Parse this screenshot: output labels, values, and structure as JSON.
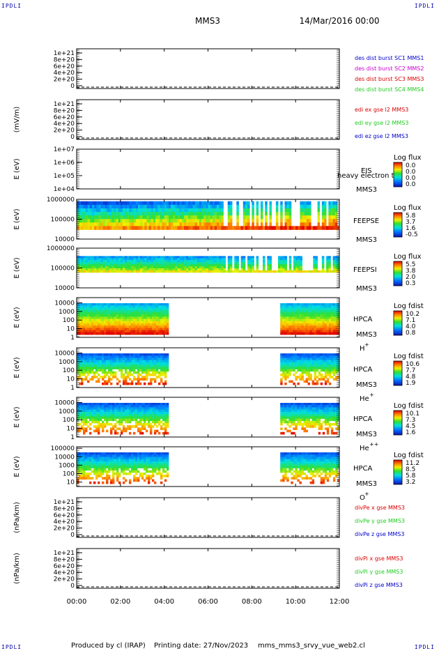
{
  "corners": {
    "top_left": "IPDLI",
    "top_right": "IPDLI",
    "bottom_left": "IPDLI",
    "bottom_right": "IPDLI"
  },
  "header": {
    "spacecraft": "MMS3",
    "date": "14/Mar/2016 00:00"
  },
  "footer": {
    "produced_by": "Produced by cl (IRAP)",
    "printing_date": "Printing date: 27/Nov/2023",
    "script_name": "mms_mms3_srvy_vue_web2.cl"
  },
  "colors": {
    "ink": "#000000",
    "red": "#dd0000",
    "green": "#22cc22",
    "blue": "#0000cc",
    "magenta": "#cc00cc"
  },
  "chart_data": [
    {
      "id": "des-dist",
      "type": "line",
      "ylabel": "",
      "yticks": [
        "1e+21",
        "8e+20",
        "6e+20",
        "4e+20",
        "2e+20",
        "0"
      ],
      "ylim": [
        0,
        1e+21
      ],
      "xlim": [
        0,
        12
      ],
      "zero_line": "dashed",
      "series": [
        {
          "name": "des dist burst SC1 MMS1",
          "color": "#0000cc",
          "values": []
        },
        {
          "name": "des dist burst SC2 MMS2",
          "color": "#cc00cc",
          "values": []
        },
        {
          "name": "des dist burst SC3 MMS3",
          "color": "#dd0000",
          "values": []
        },
        {
          "name": "des dist burst SC4 MMS4",
          "color": "#22cc22",
          "values": []
        }
      ]
    },
    {
      "id": "edi",
      "type": "line",
      "ylabel": "(mV/m)",
      "yticks": [
        "1e+21",
        "8e+20",
        "6e+20",
        "4e+20",
        "2e+20",
        "0"
      ],
      "ylim": [
        0,
        1e+21
      ],
      "xlim": [
        0,
        12
      ],
      "zero_line": "dashed",
      "series": [
        {
          "name": "edi ex gse l2 MMS3",
          "color": "#dd0000",
          "values": []
        },
        {
          "name": "edi ey gse l2 MMS3",
          "color": "#22cc22",
          "values": []
        },
        {
          "name": "edi ez gse l2 MMS3",
          "color": "#0000cc",
          "values": []
        }
      ]
    },
    {
      "id": "eis",
      "type": "heatmap",
      "ylabel": "E (eV)",
      "scale": "log",
      "yticks": [
        "1e+07",
        "1e+06",
        "1e+05",
        "1e+04"
      ],
      "ylim": [
        10000,
        10000000
      ],
      "xlim": [
        0,
        12
      ],
      "instrument": "EIS",
      "instrument_extra": "heavy electron to",
      "spacecraft": "MMS3",
      "colorbar": {
        "title": "Log flux",
        "ticks": [
          "0.0",
          "0.0",
          "0.0",
          "0.0"
        ]
      },
      "data_intervals": []
    },
    {
      "id": "feeps-e",
      "type": "heatmap",
      "ylabel": "E (eV)",
      "scale": "log",
      "yticks": [
        "1000000",
        "100000",
        "10000"
      ],
      "ylim": [
        10000,
        1000000
      ],
      "xlim": [
        0,
        12
      ],
      "instrument": "FEEPSE",
      "spacecraft": "MMS3",
      "colorbar": {
        "title": "Log flux",
        "ticks": [
          "5.8",
          "3.7",
          "1.6",
          "-0.5"
        ]
      },
      "energy_band": [
        30000,
        800000
      ],
      "data_intervals": [
        [
          0,
          12
        ]
      ]
    },
    {
      "id": "feeps-i",
      "type": "heatmap",
      "ylabel": "E (eV)",
      "scale": "log",
      "yticks": [
        "1000000",
        "100000",
        "10000"
      ],
      "ylim": [
        10000,
        1000000
      ],
      "xlim": [
        0,
        12
      ],
      "instrument": "FEEPSI",
      "spacecraft": "MMS3",
      "colorbar": {
        "title": "Log flux",
        "ticks": [
          "5.5",
          "3.8",
          "2.0",
          "0.3"
        ]
      },
      "energy_band": [
        60000,
        400000
      ],
      "data_intervals": [
        [
          0,
          12
        ]
      ]
    },
    {
      "id": "hpca-h",
      "type": "heatmap",
      "ylabel": "E (eV)",
      "scale": "log",
      "yticks": [
        "10000",
        "1000",
        "100",
        "10",
        "1"
      ],
      "ylim": [
        1,
        40000
      ],
      "xlim": [
        0,
        12
      ],
      "instrument": "HPCA",
      "spacecraft": "MMS3",
      "species": "H",
      "species_charge": "+",
      "colorbar": {
        "title": "Log fdist",
        "ticks": [
          "10.2",
          "7.1",
          "4.0",
          "0.8"
        ]
      },
      "data_intervals": [
        [
          0,
          4.2
        ],
        [
          9.3,
          12
        ]
      ]
    },
    {
      "id": "hpca-he",
      "type": "heatmap",
      "ylabel": "E (eV)",
      "scale": "log",
      "yticks": [
        "10000",
        "1000",
        "100",
        "10",
        "1"
      ],
      "ylim": [
        1,
        40000
      ],
      "xlim": [
        0,
        12
      ],
      "instrument": "HPCA",
      "spacecraft": "MMS3",
      "species": "He",
      "species_charge": "+",
      "colorbar": {
        "title": "Log fdist",
        "ticks": [
          "10.6",
          "7.7",
          "4.8",
          "1.9"
        ]
      },
      "data_intervals": [
        [
          0,
          4.2
        ],
        [
          9.3,
          12
        ]
      ]
    },
    {
      "id": "hpca-hepp",
      "type": "heatmap",
      "ylabel": "E (eV)",
      "scale": "log",
      "yticks": [
        "10000",
        "1000",
        "100",
        "10",
        "1"
      ],
      "ylim": [
        1,
        40000
      ],
      "xlim": [
        0,
        12
      ],
      "instrument": "HPCA",
      "spacecraft": "MMS3",
      "species": "He",
      "species_charge": "++",
      "colorbar": {
        "title": "Log fdist",
        "ticks": [
          "10.1",
          "7.3",
          "4.5",
          "1.6"
        ]
      },
      "data_intervals": [
        [
          0,
          4.2
        ],
        [
          9.3,
          12
        ]
      ]
    },
    {
      "id": "hpca-o",
      "type": "heatmap",
      "ylabel": "E (eV)",
      "scale": "log",
      "yticks": [
        "100000",
        "10000",
        "1000",
        "100",
        "10"
      ],
      "ylim": [
        3,
        150000
      ],
      "xlim": [
        0,
        12
      ],
      "instrument": "HPCA",
      "spacecraft": "MMS3",
      "species": "O",
      "species_charge": "+",
      "colorbar": {
        "title": "Log fdist",
        "ticks": [
          "11.2",
          "8.5",
          "5.8",
          "3.2"
        ]
      },
      "data_intervals": [
        [
          0,
          4.2
        ],
        [
          9.3,
          12
        ]
      ]
    },
    {
      "id": "divpe",
      "type": "line",
      "ylabel": "(nPa/km)",
      "yticks": [
        "1e+21",
        "8e+20",
        "6e+20",
        "4e+20",
        "2e+20",
        "0"
      ],
      "ylim": [
        0,
        1e+21
      ],
      "xlim": [
        0,
        12
      ],
      "zero_line": "dashed",
      "series": [
        {
          "name": "divPe x gse MMS3",
          "color": "#dd0000",
          "values": []
        },
        {
          "name": "divPe y gse MMS3",
          "color": "#22cc22",
          "values": []
        },
        {
          "name": "divPe z gse MMS3",
          "color": "#0000cc",
          "values": []
        }
      ]
    },
    {
      "id": "divpi",
      "type": "line",
      "ylabel": "(nPa/km)",
      "yticks": [
        "1e+21",
        "8e+20",
        "6e+20",
        "4e+20",
        "2e+20",
        "0"
      ],
      "ylim": [
        0,
        1e+21
      ],
      "xlim": [
        0,
        12
      ],
      "zero_line": "dashed",
      "series": [
        {
          "name": "divPi x gse MMS3",
          "color": "#dd0000",
          "values": []
        },
        {
          "name": "divPi y gse MMS3",
          "color": "#22cc22",
          "values": []
        },
        {
          "name": "divPi z gse MMS3",
          "color": "#0000cc",
          "values": []
        }
      ]
    }
  ],
  "x_axis": {
    "ticks": [
      "00:00",
      "02:00",
      "04:00",
      "06:00",
      "08:00",
      "10:00",
      "12:00"
    ],
    "xlim": [
      0,
      12
    ]
  }
}
